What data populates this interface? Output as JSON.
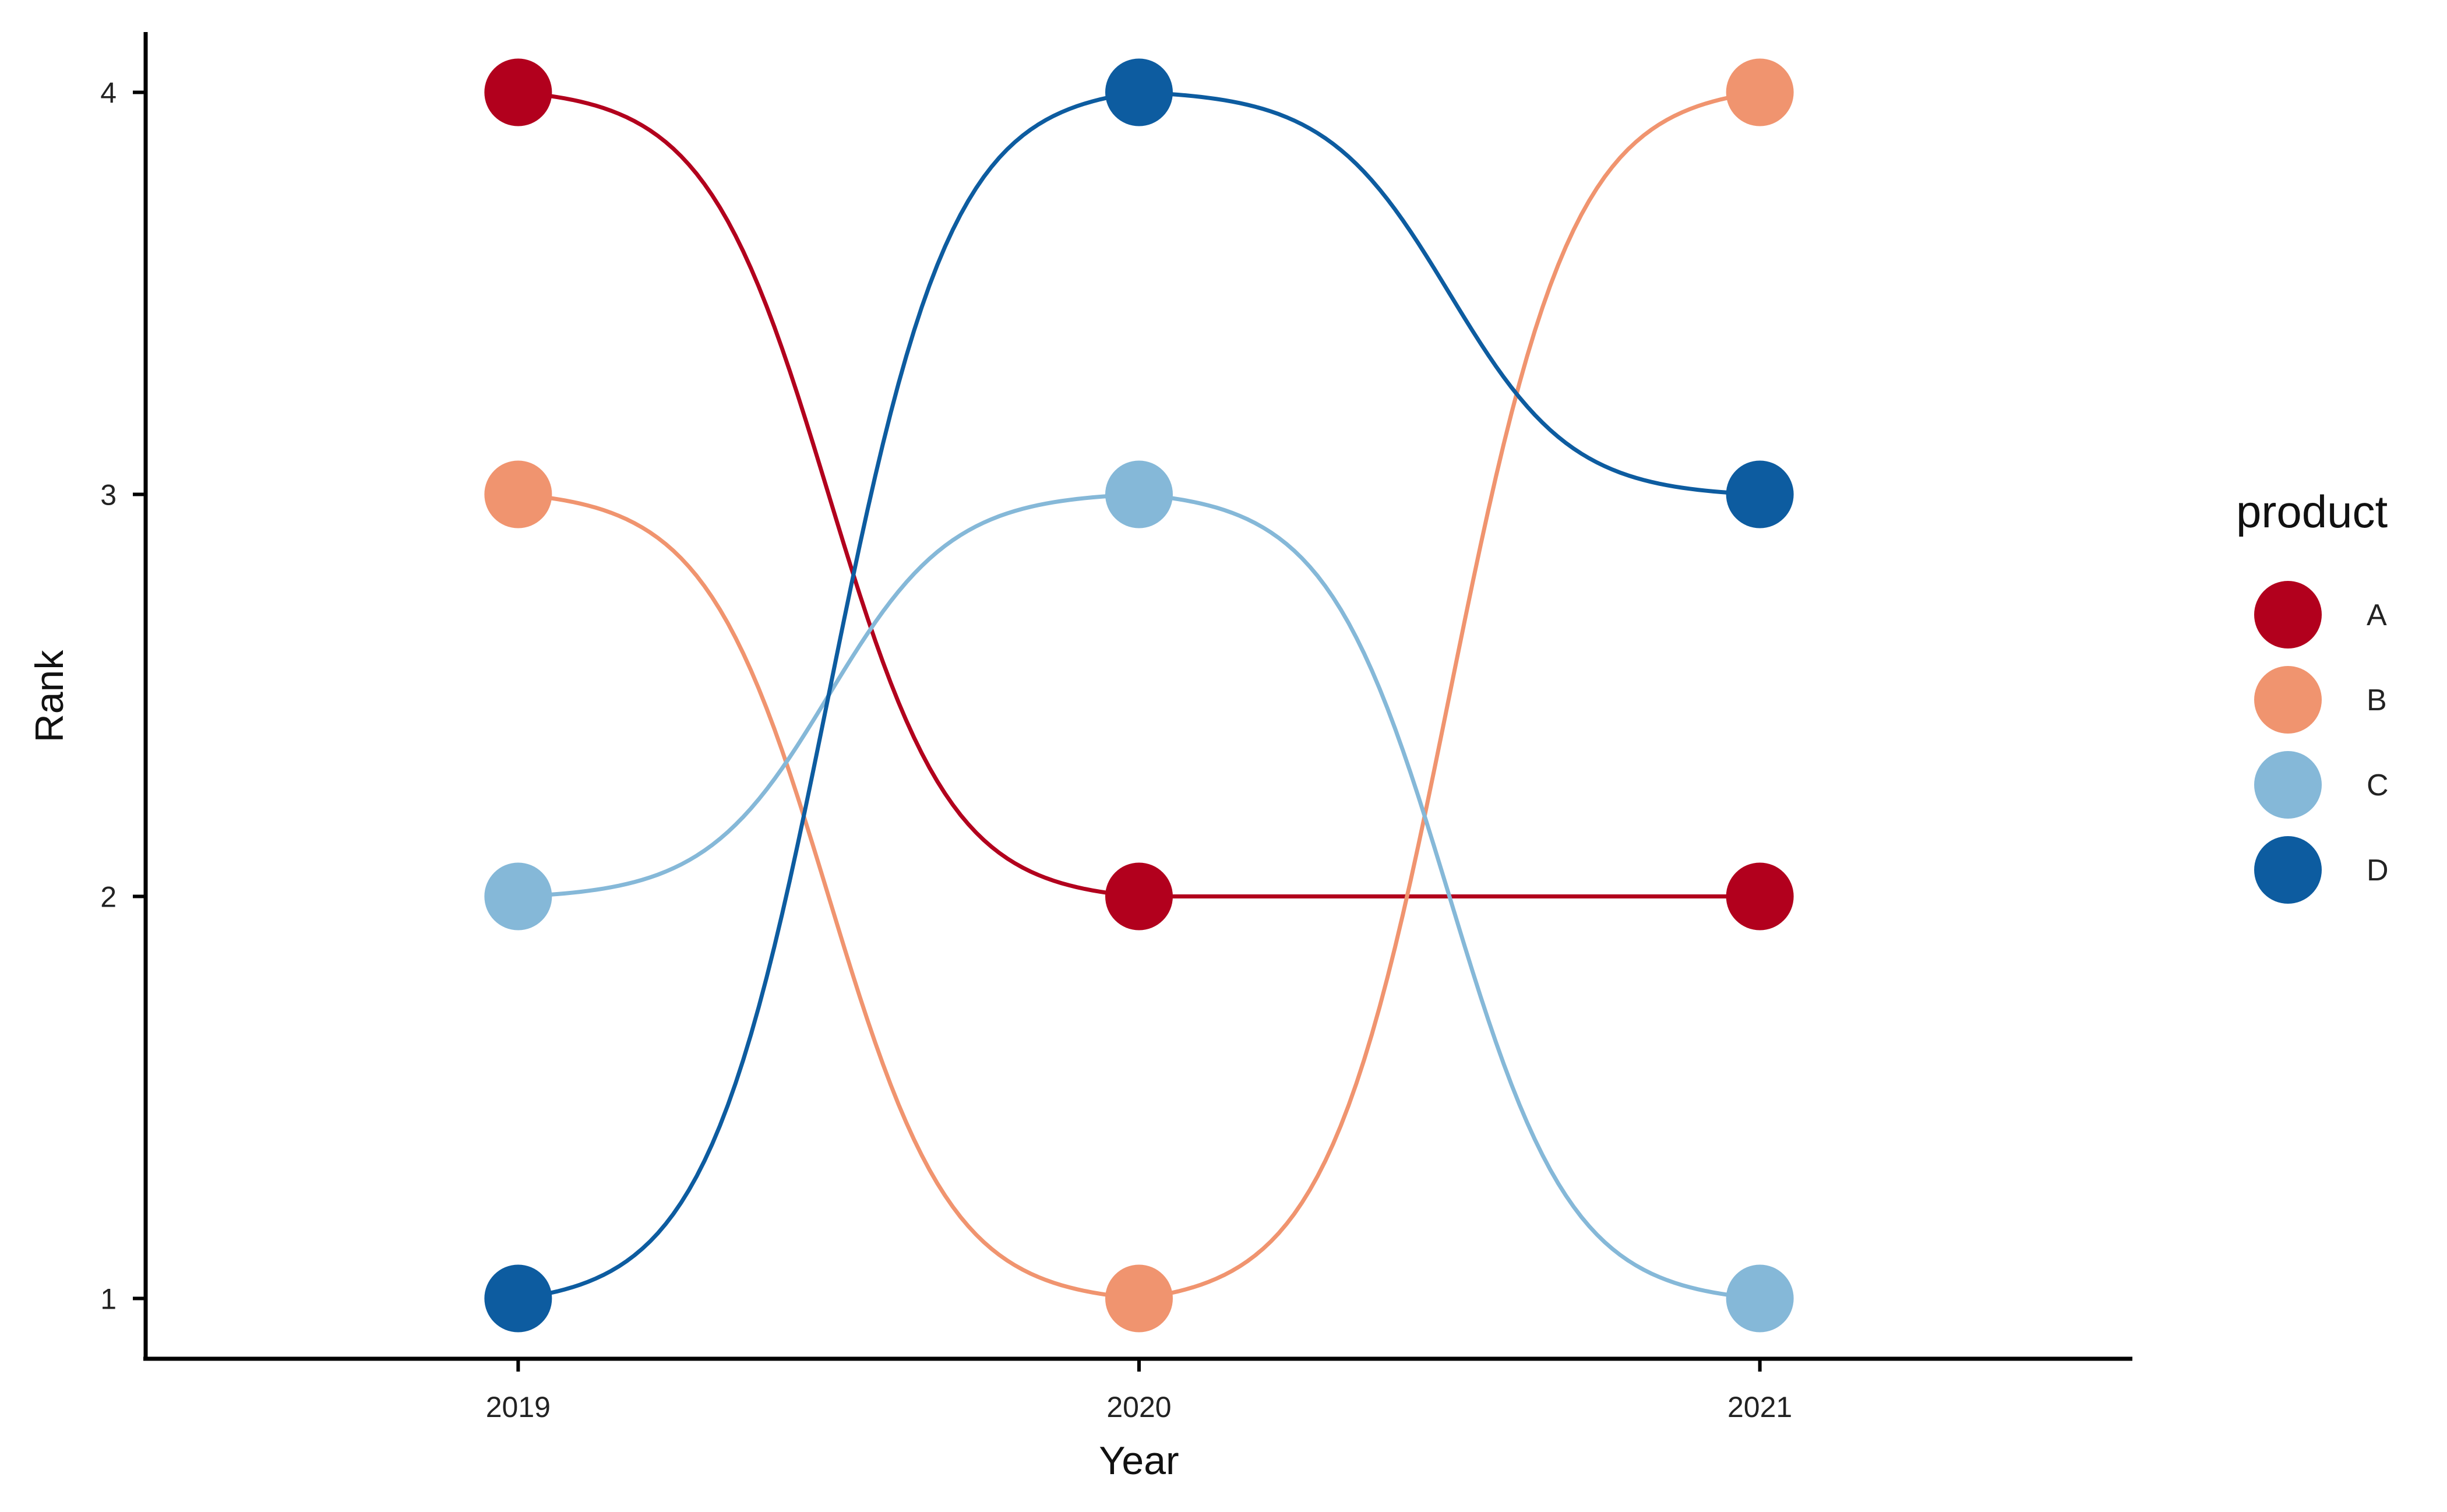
{
  "chart_data": {
    "type": "line",
    "style": "bump chart with smooth sigmoid connections and point markers",
    "xlabel": "Year",
    "ylabel": "Rank",
    "x": [
      2019,
      2020,
      2021
    ],
    "x_tick_labels": [
      "2019",
      "2020",
      "2021"
    ],
    "y_ticks": [
      1,
      2,
      3,
      4
    ],
    "y_tick_labels": [
      "1",
      "2",
      "3",
      "4"
    ],
    "xlim": [
      2018.4,
      2021.6
    ],
    "ylim": [
      0.85,
      4.15
    ],
    "grid": false,
    "legend": {
      "title": "product",
      "position": "right"
    },
    "series": [
      {
        "name": "A",
        "color": "#B2001D",
        "values": [
          4,
          2,
          2
        ]
      },
      {
        "name": "B",
        "color": "#F0946F",
        "values": [
          3,
          1,
          4
        ]
      },
      {
        "name": "C",
        "color": "#85B8D8",
        "values": [
          2,
          3,
          1
        ]
      },
      {
        "name": "D",
        "color": "#0D5CA0",
        "values": [
          1,
          4,
          3
        ]
      }
    ]
  }
}
